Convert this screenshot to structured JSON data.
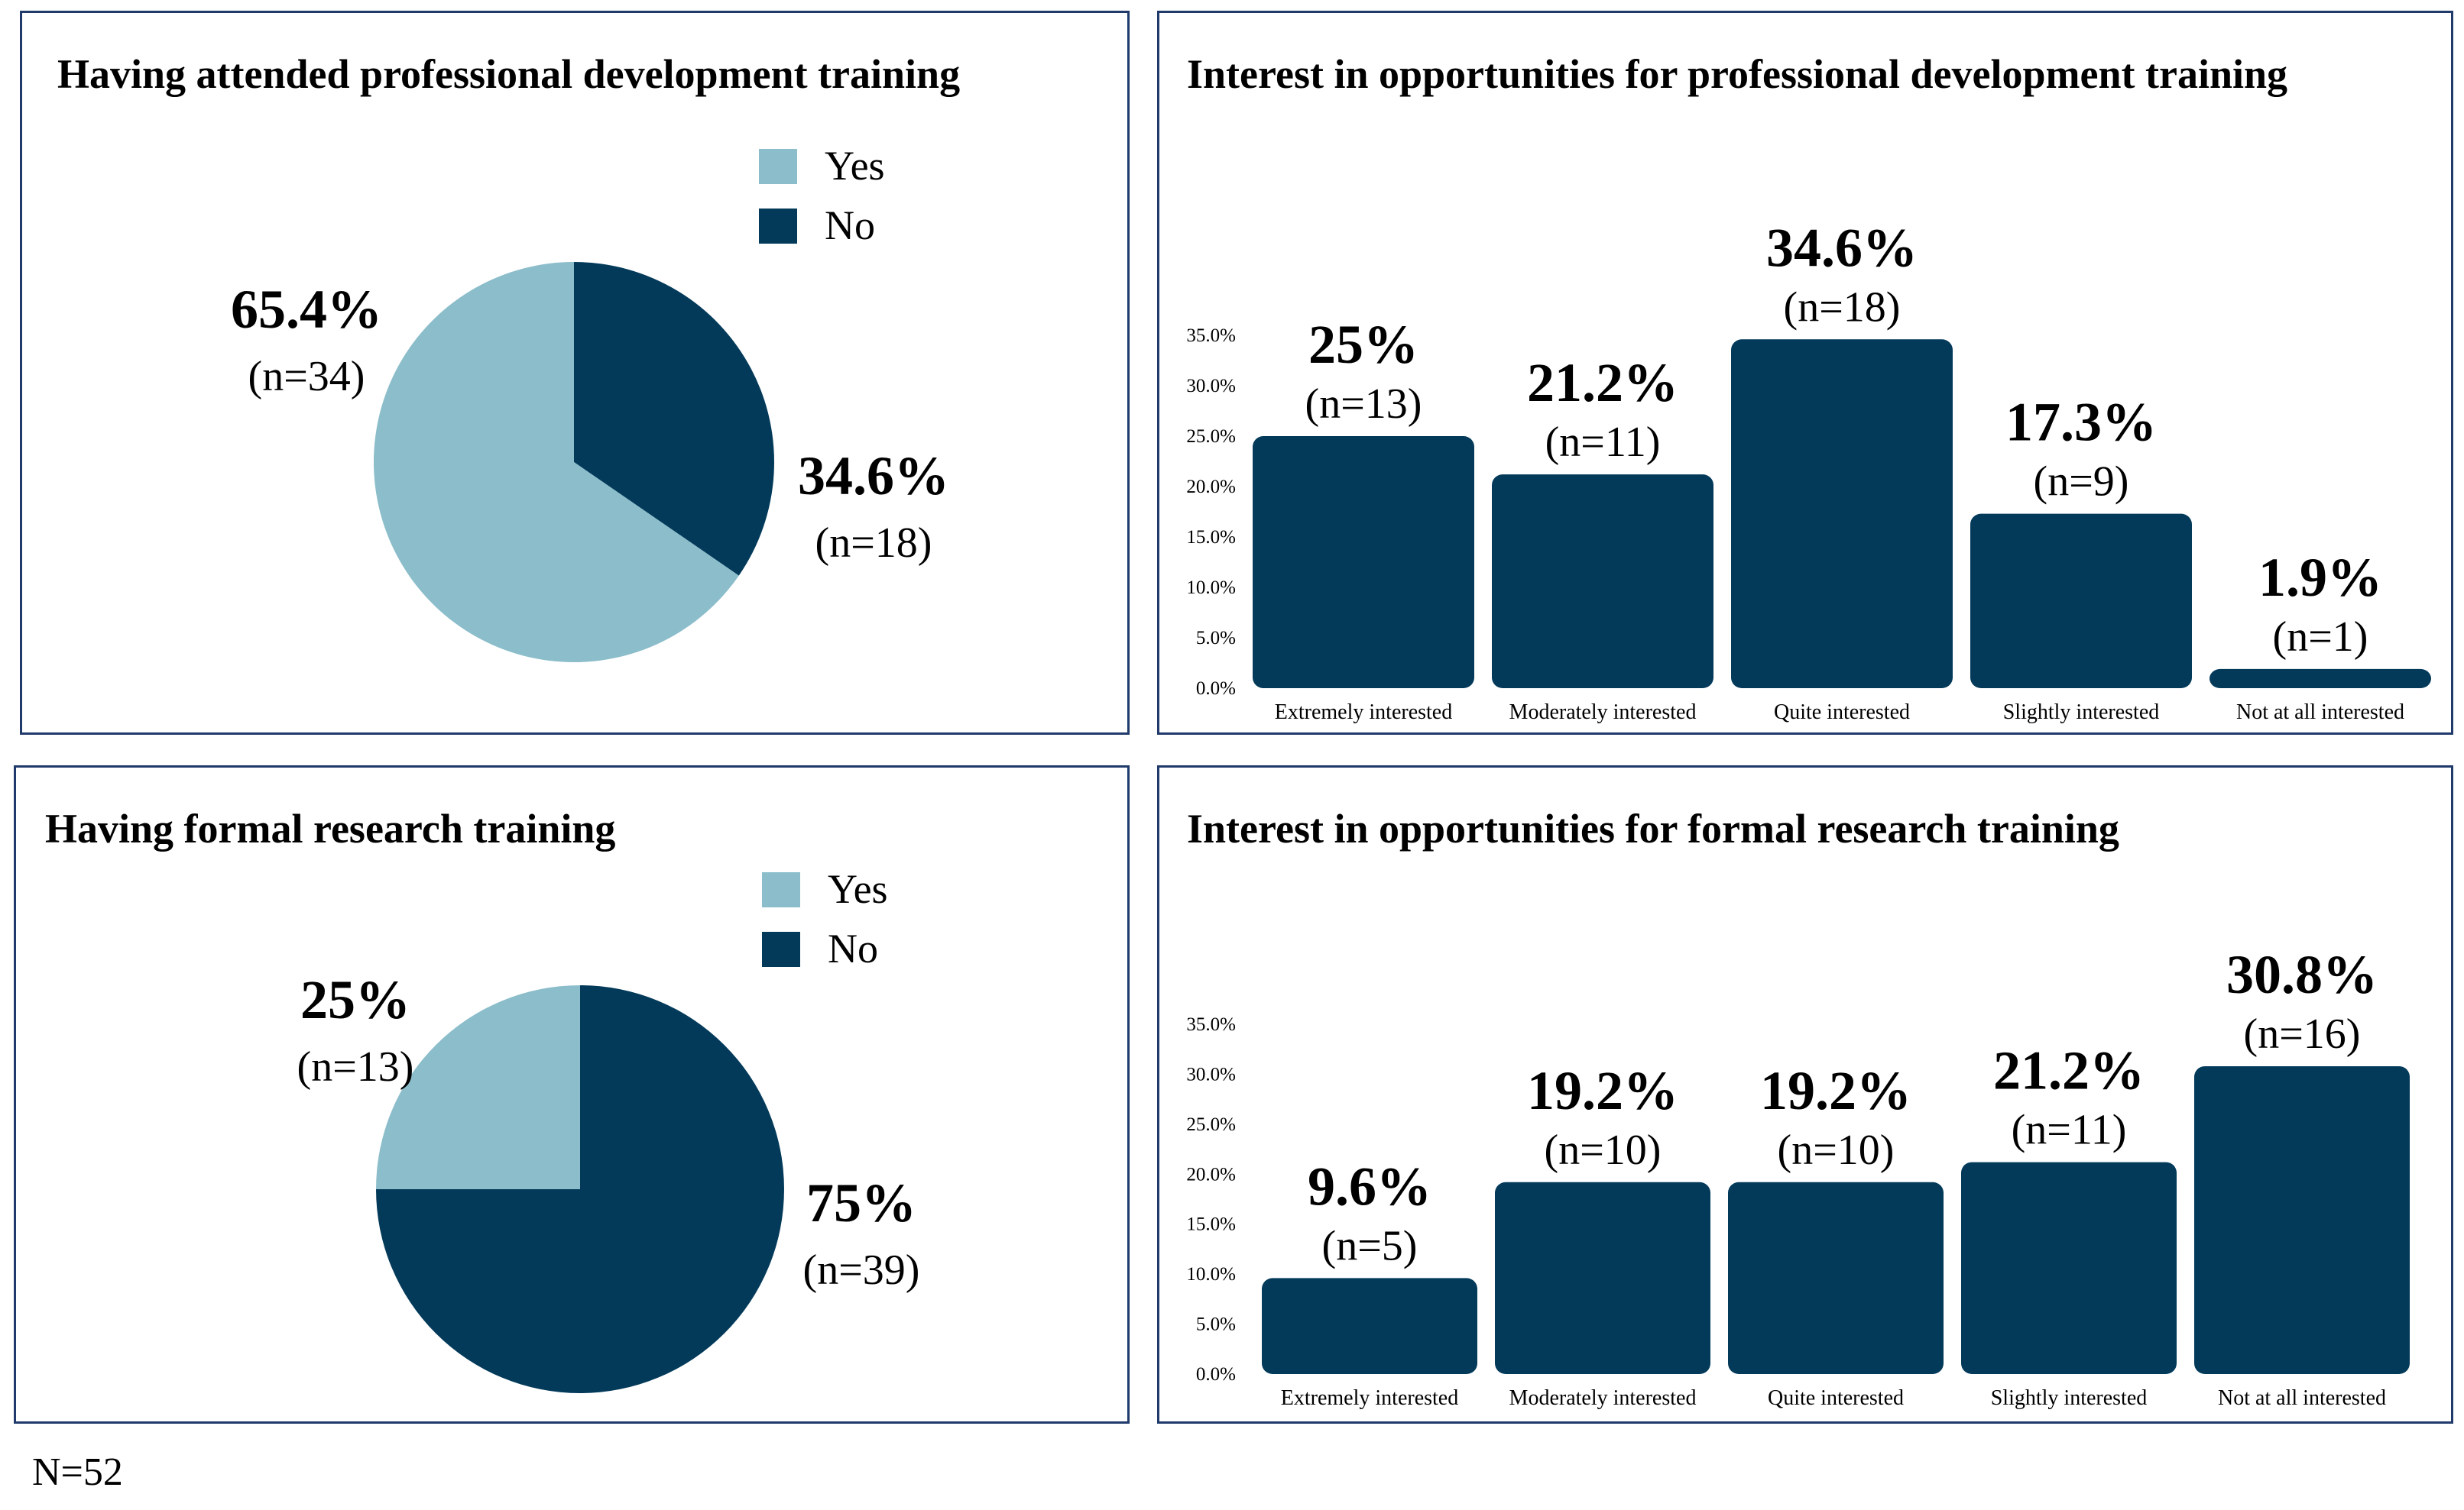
{
  "colors": {
    "yes": "#8bbdca",
    "no": "#033a5a",
    "bar": "#033a5a",
    "border": "#1f3a6b"
  },
  "sample_size": "N=52",
  "chart_data": [
    {
      "type": "pie",
      "title": "Having attended professional development training",
      "legend": [
        "Yes",
        "No"
      ],
      "categories": [
        "Yes",
        "No"
      ],
      "values": [
        65.4,
        34.6
      ],
      "labels": [
        "65.4%",
        "34.6%"
      ],
      "counts": [
        "(n=34)",
        "(n=18)"
      ]
    },
    {
      "type": "bar",
      "title": "Interest in opportunities for professional development training",
      "categories": [
        "Extremely interested",
        "Moderately interested",
        "Quite interested",
        "Slightly interested",
        "Not at all interested"
      ],
      "values": [
        25,
        21.2,
        34.6,
        17.3,
        1.9
      ],
      "labels": [
        "25%",
        "21.2%",
        "34.6%",
        "17.3%",
        "1.9%"
      ],
      "counts": [
        "(n=13)",
        "(n=11)",
        "(n=18)",
        "(n=9)",
        "(n=1)"
      ],
      "yticks": [
        "0.0%",
        "5.0%",
        "10.0%",
        "15.0%",
        "20.0%",
        "25.0%",
        "30.0%",
        "35.0%"
      ],
      "ylim": [
        0,
        35
      ]
    },
    {
      "type": "pie",
      "title": "Having formal research training",
      "legend": [
        "Yes",
        "No"
      ],
      "categories": [
        "Yes",
        "No"
      ],
      "values": [
        25,
        75
      ],
      "labels": [
        "25%",
        "75%"
      ],
      "counts": [
        "(n=13)",
        "(n=39)"
      ]
    },
    {
      "type": "bar",
      "title": "Interest in opportunities for formal research training",
      "categories": [
        "Extremely interested",
        "Moderately interested",
        "Quite interested",
        "Slightly interested",
        "Not at all interested"
      ],
      "values": [
        9.6,
        19.2,
        19.2,
        21.2,
        30.8
      ],
      "labels": [
        "9.6%",
        "19.2%",
        "19.2%",
        "21.2%",
        "30.8%"
      ],
      "counts": [
        "(n=5)",
        "(n=10)",
        "(n=10)",
        "(n=11)",
        "(n=16)"
      ],
      "yticks": [
        "0.0%",
        "5.0%",
        "10.0%",
        "15.0%",
        "20.0%",
        "25.0%",
        "30.0%",
        "35.0%"
      ],
      "ylim": [
        0,
        35
      ]
    }
  ]
}
